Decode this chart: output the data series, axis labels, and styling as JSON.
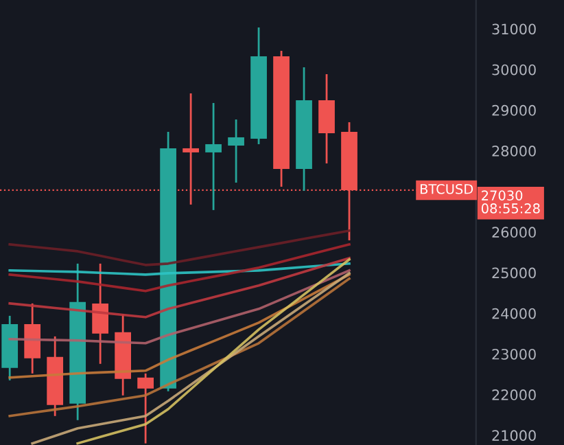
{
  "chart_data": {
    "type": "candlestick",
    "categories": [
      null,
      null,
      null,
      null,
      null,
      null,
      null,
      null,
      null,
      null,
      null,
      null,
      null,
      null,
      null,
      null
    ],
    "ohlc": [
      [
        22655,
        23939,
        22351,
        23736
      ],
      [
        23736,
        24243,
        22520,
        22892
      ],
      [
        22926,
        23432,
        21473,
        21743
      ],
      [
        21777,
        25223,
        21372,
        24277
      ],
      [
        24243,
        25223,
        22757,
        23500
      ],
      [
        23534,
        23973,
        21980,
        22385
      ],
      [
        22419,
        22520,
        20800,
        22149
      ],
      [
        22149,
        28466,
        22081,
        28061
      ],
      [
        28061,
        29412,
        26676,
        27960
      ],
      [
        27960,
        29176,
        26541,
        28162
      ],
      [
        28128,
        28770,
        27216,
        28331
      ],
      [
        28297,
        31034,
        28162,
        30324
      ],
      [
        30324,
        30459,
        27115,
        27554
      ],
      [
        27554,
        30054,
        27014,
        29243
      ],
      [
        29243,
        29885,
        27689,
        28432
      ],
      [
        28466,
        28703,
        25797,
        27030
      ]
    ],
    "colors": [
      "#26a69a",
      "#ef5350",
      "#ef5350",
      "#26a69a",
      "#ef5350",
      "#ef5350",
      "#ef5350",
      "#26a69a",
      "#ef5350",
      "#26a69a",
      "#26a69a",
      "#26a69a",
      "#ef5350",
      "#26a69a",
      "#ef5350",
      "#ef5350"
    ],
    "series": [
      {
        "type": "line",
        "color": "#6b1f27",
        "values": [
          25697,
          25640,
          25584,
          25527,
          25415,
          25302,
          25190,
          25224,
          25325,
          25426,
          25528,
          25629,
          25730,
          25832,
          25933,
          26034
        ]
      },
      {
        "type": "line",
        "color": "#2ec4c4",
        "values": [
          25055,
          25044,
          25032,
          25021,
          24998,
          24976,
          24953,
          24987,
          25004,
          25021,
          25038,
          25055,
          25097,
          25140,
          25182,
          25224
        ]
      },
      {
        "type": "line",
        "color": "#a8262d",
        "values": [
          24953,
          24897,
          24840,
          24784,
          24705,
          24627,
          24548,
          24683,
          24793,
          24902,
          25012,
          25122,
          25266,
          25410,
          25553,
          25697
        ]
      },
      {
        "type": "line",
        "color": "#c0393f",
        "values": [
          24244,
          24188,
          24131,
          24075,
          24019,
          23962,
          23906,
          24109,
          24253,
          24396,
          24540,
          24683,
          24852,
          25021,
          25190,
          25359
        ]
      },
      {
        "type": "line",
        "color": "#b0606a",
        "values": [
          23366,
          23355,
          23343,
          23332,
          23309,
          23287,
          23264,
          23467,
          23628,
          23788,
          23949,
          24109,
          24346,
          24582,
          24819,
          25055
        ]
      },
      {
        "type": "line",
        "color": "#c77a3a",
        "values": [
          22420,
          22454,
          22487,
          22521,
          22544,
          22566,
          22589,
          22859,
          23087,
          23315,
          23543,
          23771,
          24067,
          24362,
          24658,
          24953
        ]
      },
      {
        "type": "line",
        "color": "#b8733a",
        "values": [
          21474,
          21553,
          21632,
          21711,
          21801,
          21891,
          21981,
          22251,
          22504,
          22758,
          23011,
          23264,
          23661,
          24058,
          24455,
          24852
        ]
      },
      {
        "type": "line",
        "color": "#c8a878",
        "values": [
          null,
          20800,
          20985,
          21170,
          21271,
          21373,
          21474,
          21846,
          22243,
          22639,
          23036,
          23433,
          23822,
          24210,
          24599,
          24987
        ]
      },
      {
        "type": "line",
        "color": "#d4c060",
        "values": [
          null,
          null,
          null,
          20800,
          20957,
          21114,
          21271,
          21643,
          22133,
          22623,
          23112,
          23602,
          24033,
          24464,
          24894,
          25325
        ]
      }
    ],
    "ylim": [
      20760,
      31710
    ],
    "yticks": [
      21000,
      22000,
      23000,
      24000,
      25000,
      26000,
      28000,
      29000,
      30000,
      31000
    ],
    "tick_labels": "y",
    "grid": false,
    "ref_lines": [
      {
        "axis": "y",
        "value": 27030,
        "label": "BTCUSD",
        "color": "#ef5350",
        "line_style": "dotted"
      }
    ],
    "annotations": [
      "27030",
      "08:55:28"
    ]
  }
}
